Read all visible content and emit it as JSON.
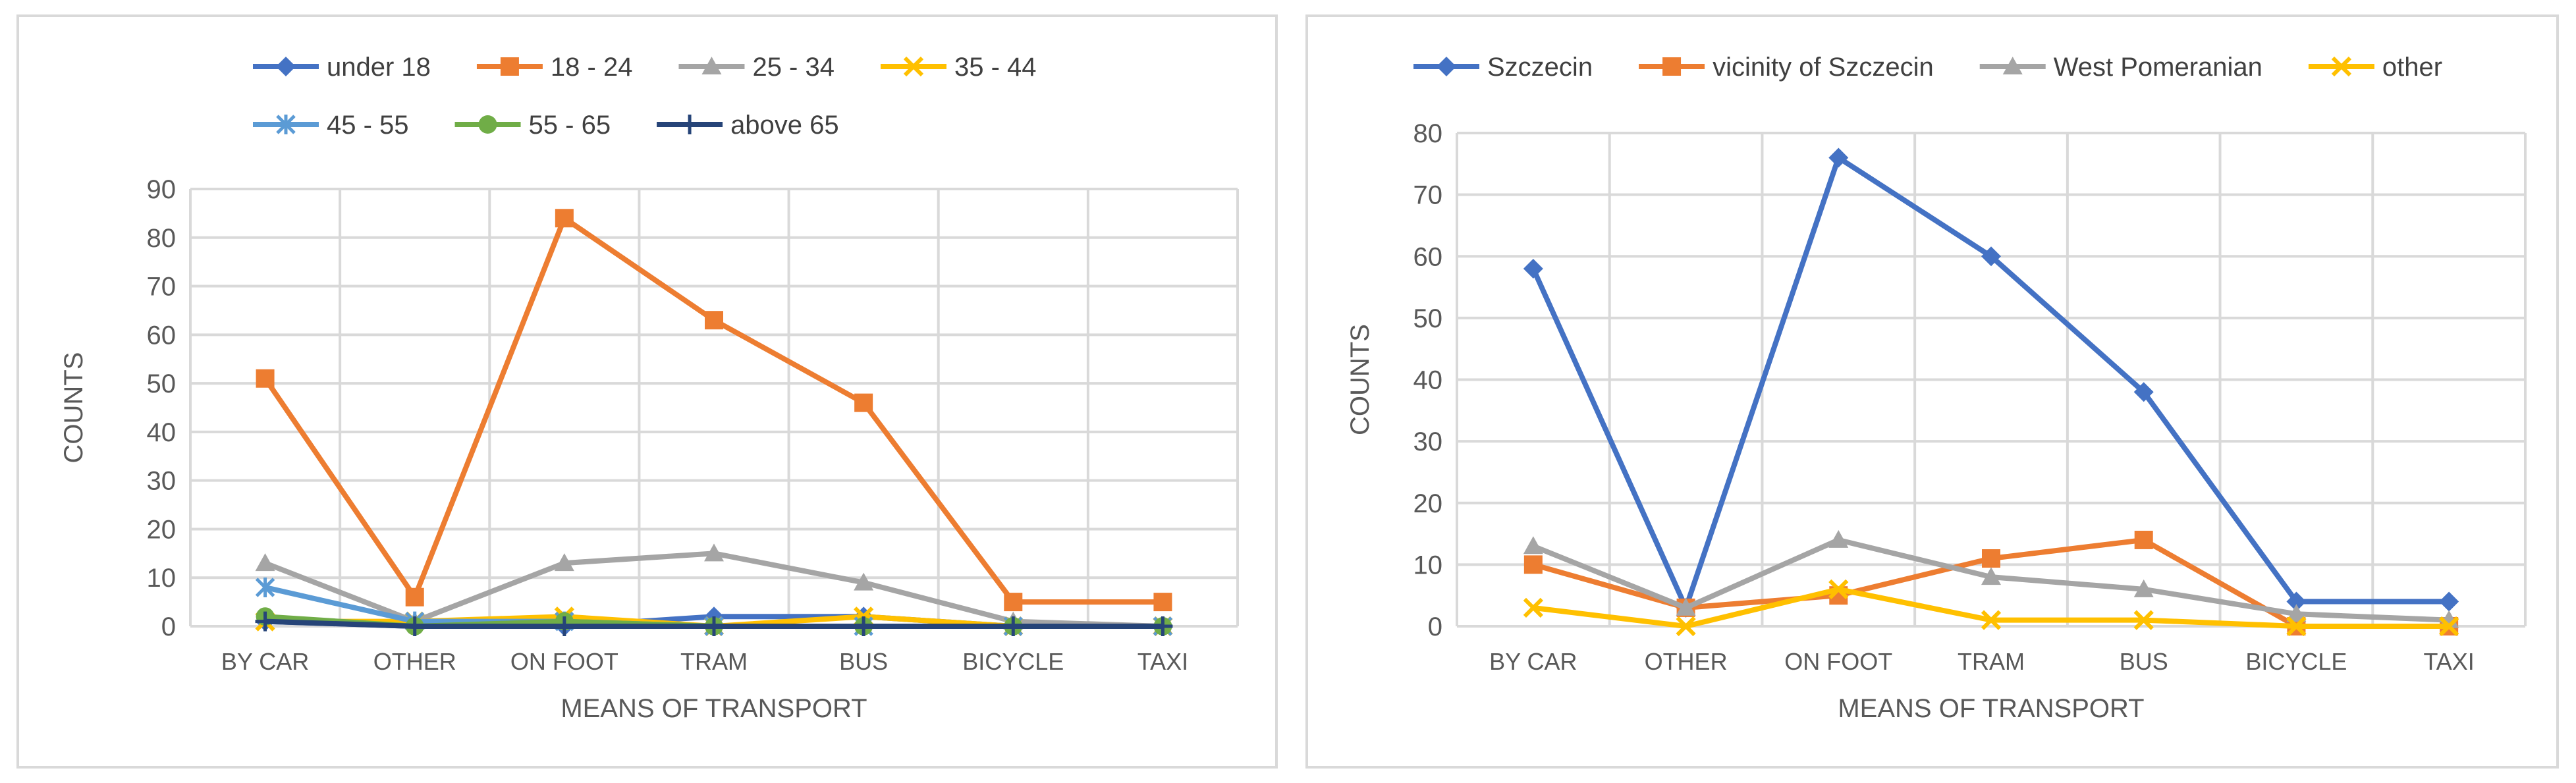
{
  "chart_data": [
    {
      "type": "line",
      "title": "",
      "xlabel": "MEANS OF TRANSPORT",
      "ylabel": "COUNTS",
      "ylim": [
        0,
        90
      ],
      "ystep": 10,
      "grid": true,
      "legend_position": "top",
      "categories": [
        "BY CAR",
        "OTHER",
        "ON FOOT",
        "TRAM",
        "BUS",
        "BICYCLE",
        "TAXI"
      ],
      "series": [
        {
          "name": "under 18",
          "color": "#4472c4",
          "marker": "diamond",
          "values": [
            1,
            0,
            0,
            2,
            2,
            0,
            0
          ]
        },
        {
          "name": "18 - 24",
          "color": "#ed7d31",
          "marker": "square",
          "values": [
            51,
            6,
            84,
            63,
            46,
            5,
            5
          ]
        },
        {
          "name": "25 - 34",
          "color": "#a5a5a5",
          "marker": "triangle",
          "values": [
            13,
            1,
            13,
            15,
            9,
            1,
            0
          ]
        },
        {
          "name": "35 - 44",
          "color": "#ffc000",
          "marker": "x",
          "values": [
            1,
            1,
            2,
            0,
            2,
            0,
            0
          ]
        },
        {
          "name": "45 - 55",
          "color": "#5b9bd5",
          "marker": "star",
          "values": [
            8,
            1,
            1,
            0,
            0,
            0,
            0
          ]
        },
        {
          "name": "55 - 65",
          "color": "#70ad47",
          "marker": "circle",
          "values": [
            2,
            0,
            1,
            0,
            0,
            0,
            0
          ]
        },
        {
          "name": "above 65",
          "color": "#264478",
          "marker": "plus",
          "values": [
            1,
            0,
            0,
            0,
            0,
            0,
            0
          ]
        }
      ]
    },
    {
      "type": "line",
      "title": "",
      "xlabel": "MEANS OF TRANSPORT",
      "ylabel": "COUNTS",
      "ylim": [
        0,
        80
      ],
      "ystep": 10,
      "grid": true,
      "legend_position": "top",
      "categories": [
        "BY CAR",
        "OTHER",
        "ON FOOT",
        "TRAM",
        "BUS",
        "BICYCLE",
        "TAXI"
      ],
      "series": [
        {
          "name": "Szczecin",
          "color": "#4472c4",
          "marker": "diamond",
          "values": [
            58,
            3,
            76,
            60,
            38,
            4,
            4
          ]
        },
        {
          "name": "vicinity of Szczecin",
          "color": "#ed7d31",
          "marker": "square",
          "values": [
            10,
            3,
            5,
            11,
            14,
            0,
            0
          ]
        },
        {
          "name": "West Pomeranian",
          "color": "#a5a5a5",
          "marker": "triangle",
          "values": [
            13,
            3,
            14,
            8,
            6,
            2,
            1
          ]
        },
        {
          "name": "other",
          "color": "#ffc000",
          "marker": "x",
          "values": [
            3,
            0,
            6,
            1,
            1,
            0,
            0
          ]
        }
      ]
    }
  ]
}
